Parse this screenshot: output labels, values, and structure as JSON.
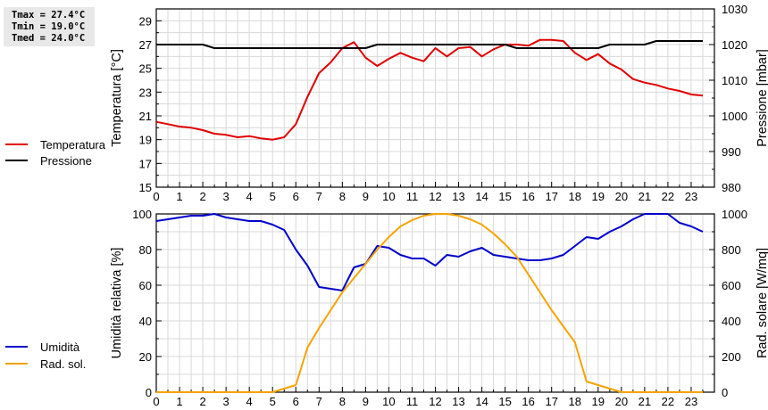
{
  "stats": {
    "tmax": "Tmax = 27.4°C",
    "tmin": "Tmin = 19.0°C",
    "tmed": "Tmed = 24.0°C"
  },
  "legend_top": [
    {
      "label": "Temperatura",
      "color": "#e00000"
    },
    {
      "label": "Pressione",
      "color": "#000000"
    }
  ],
  "legend_bottom": [
    {
      "label": "Umidità",
      "color": "#0000cc"
    },
    {
      "label": "Rad. sol.",
      "color": "#f5a300"
    }
  ],
  "chart_data": [
    {
      "type": "line",
      "title": "",
      "xlabel": "",
      "ylabel": "Temperatura [°C]",
      "ylabel_right": "Pressione [mbar]",
      "x_ticks": [
        0,
        1,
        2,
        3,
        4,
        5,
        6,
        7,
        8,
        9,
        10,
        11,
        12,
        13,
        14,
        15,
        16,
        17,
        18,
        19,
        20,
        21,
        22,
        23
      ],
      "xlim": [
        0,
        24
      ],
      "ylim": [
        15,
        30
      ],
      "ylim_right": [
        980,
        1030
      ],
      "y_ticks": [
        15,
        17,
        19,
        21,
        23,
        25,
        27,
        29
      ],
      "y_ticks_right": [
        980,
        990,
        1000,
        1010,
        1020,
        1030
      ],
      "grid": true,
      "legend_position": "left",
      "series": [
        {
          "name": "Temperatura",
          "axis": "left",
          "color": "#e00000",
          "x": [
            0,
            0.5,
            1,
            1.5,
            2,
            2.5,
            3,
            3.5,
            4,
            4.5,
            5,
            5.5,
            6,
            6.5,
            7,
            7.5,
            8,
            8.5,
            9,
            9.5,
            10,
            10.5,
            11,
            11.5,
            12,
            12.5,
            13,
            13.5,
            14,
            14.5,
            15,
            15.5,
            16,
            16.5,
            17,
            17.5,
            18,
            18.5,
            19,
            19.5,
            20,
            20.5,
            21,
            21.5,
            22,
            22.5,
            23,
            23.5
          ],
          "values": [
            20.5,
            20.3,
            20.1,
            20.0,
            19.8,
            19.5,
            19.4,
            19.2,
            19.3,
            19.1,
            19.0,
            19.2,
            20.3,
            22.6,
            24.6,
            25.5,
            26.7,
            27.2,
            25.9,
            25.2,
            25.8,
            26.3,
            25.9,
            25.6,
            26.7,
            26.0,
            26.7,
            26.8,
            26.0,
            26.6,
            27.0,
            27.0,
            26.9,
            27.4,
            27.4,
            27.3,
            26.3,
            25.7,
            26.2,
            25.4,
            24.9,
            24.1,
            23.8,
            23.6,
            23.3,
            23.1,
            22.8,
            22.7
          ]
        },
        {
          "name": "Pressione",
          "axis": "right",
          "color": "#000000",
          "x": [
            0,
            0.5,
            1,
            1.5,
            2,
            2.5,
            3,
            3.5,
            4,
            4.5,
            5,
            5.5,
            6,
            6.5,
            7,
            7.5,
            8,
            8.5,
            9,
            9.5,
            10,
            10.5,
            11,
            11.5,
            12,
            12.5,
            13,
            13.5,
            14,
            14.5,
            15,
            15.5,
            16,
            16.5,
            17,
            17.5,
            18,
            18.5,
            19,
            19.5,
            20,
            20.5,
            21,
            21.5,
            22,
            22.5,
            23,
            23.5
          ],
          "values": [
            1020,
            1020,
            1020,
            1020,
            1020,
            1019,
            1019,
            1019,
            1019,
            1019,
            1019,
            1019,
            1019,
            1019,
            1019,
            1019,
            1019,
            1019,
            1019,
            1020,
            1020,
            1020,
            1020,
            1020,
            1020,
            1020,
            1020,
            1020,
            1020,
            1020,
            1020,
            1019,
            1019,
            1019,
            1019,
            1019,
            1019,
            1019,
            1019,
            1020,
            1020,
            1020,
            1020,
            1021,
            1021,
            1021,
            1021,
            1021
          ]
        }
      ]
    },
    {
      "type": "line",
      "title": "",
      "xlabel": "",
      "ylabel": "Umidità relativa [%]",
      "ylabel_right": "Rad. solare [W/mq]",
      "x_ticks": [
        0,
        1,
        2,
        3,
        4,
        5,
        6,
        7,
        8,
        9,
        10,
        11,
        12,
        13,
        14,
        15,
        16,
        17,
        18,
        19,
        20,
        21,
        22,
        23
      ],
      "xlim": [
        0,
        24
      ],
      "ylim": [
        0,
        100
      ],
      "ylim_right": [
        0,
        1000
      ],
      "y_ticks": [
        0,
        20,
        40,
        60,
        80,
        100
      ],
      "y_ticks_right": [
        0,
        200,
        400,
        600,
        800,
        1000
      ],
      "grid": true,
      "legend_position": "left",
      "series": [
        {
          "name": "Umidità",
          "axis": "left",
          "color": "#0000cc",
          "x": [
            0,
            0.5,
            1,
            1.5,
            2,
            2.5,
            3,
            3.5,
            4,
            4.5,
            5,
            5.5,
            6,
            6.5,
            7,
            7.5,
            8,
            8.5,
            9,
            9.5,
            10,
            10.5,
            11,
            11.5,
            12,
            12.5,
            13,
            13.5,
            14,
            14.5,
            15,
            15.5,
            16,
            16.5,
            17,
            17.5,
            18,
            18.5,
            19,
            19.5,
            20,
            20.5,
            21,
            21.5,
            22,
            22.5,
            23,
            23.5
          ],
          "values": [
            96,
            97,
            98,
            99,
            99,
            100,
            98,
            97,
            96,
            96,
            94,
            91,
            80,
            71,
            59,
            58,
            57,
            70,
            72,
            82,
            81,
            77,
            75,
            75,
            71,
            77,
            76,
            79,
            81,
            77,
            76,
            75,
            74,
            74,
            75,
            77,
            82,
            87,
            86,
            90,
            93,
            97,
            100,
            100,
            100,
            95,
            93,
            90
          ]
        },
        {
          "name": "Rad. sol.",
          "axis": "right",
          "color": "#f5a300",
          "x": [
            0,
            1,
            2,
            3,
            4,
            5,
            5.5,
            6,
            6.5,
            7,
            7.5,
            8,
            8.5,
            9,
            9.5,
            10,
            10.5,
            11,
            11.5,
            12,
            12.5,
            13,
            13.5,
            14,
            14.5,
            15,
            15.5,
            16,
            16.5,
            17,
            17.5,
            18,
            18.5,
            19,
            19.5,
            20,
            21,
            22,
            23,
            23.5
          ],
          "values": [
            0,
            0,
            0,
            0,
            0,
            0,
            20,
            40,
            250,
            360,
            460,
            560,
            640,
            720,
            800,
            870,
            930,
            965,
            990,
            1000,
            1000,
            990,
            970,
            940,
            890,
            830,
            760,
            660,
            560,
            460,
            370,
            280,
            60,
            40,
            20,
            0,
            0,
            0,
            0,
            0
          ]
        }
      ]
    }
  ]
}
